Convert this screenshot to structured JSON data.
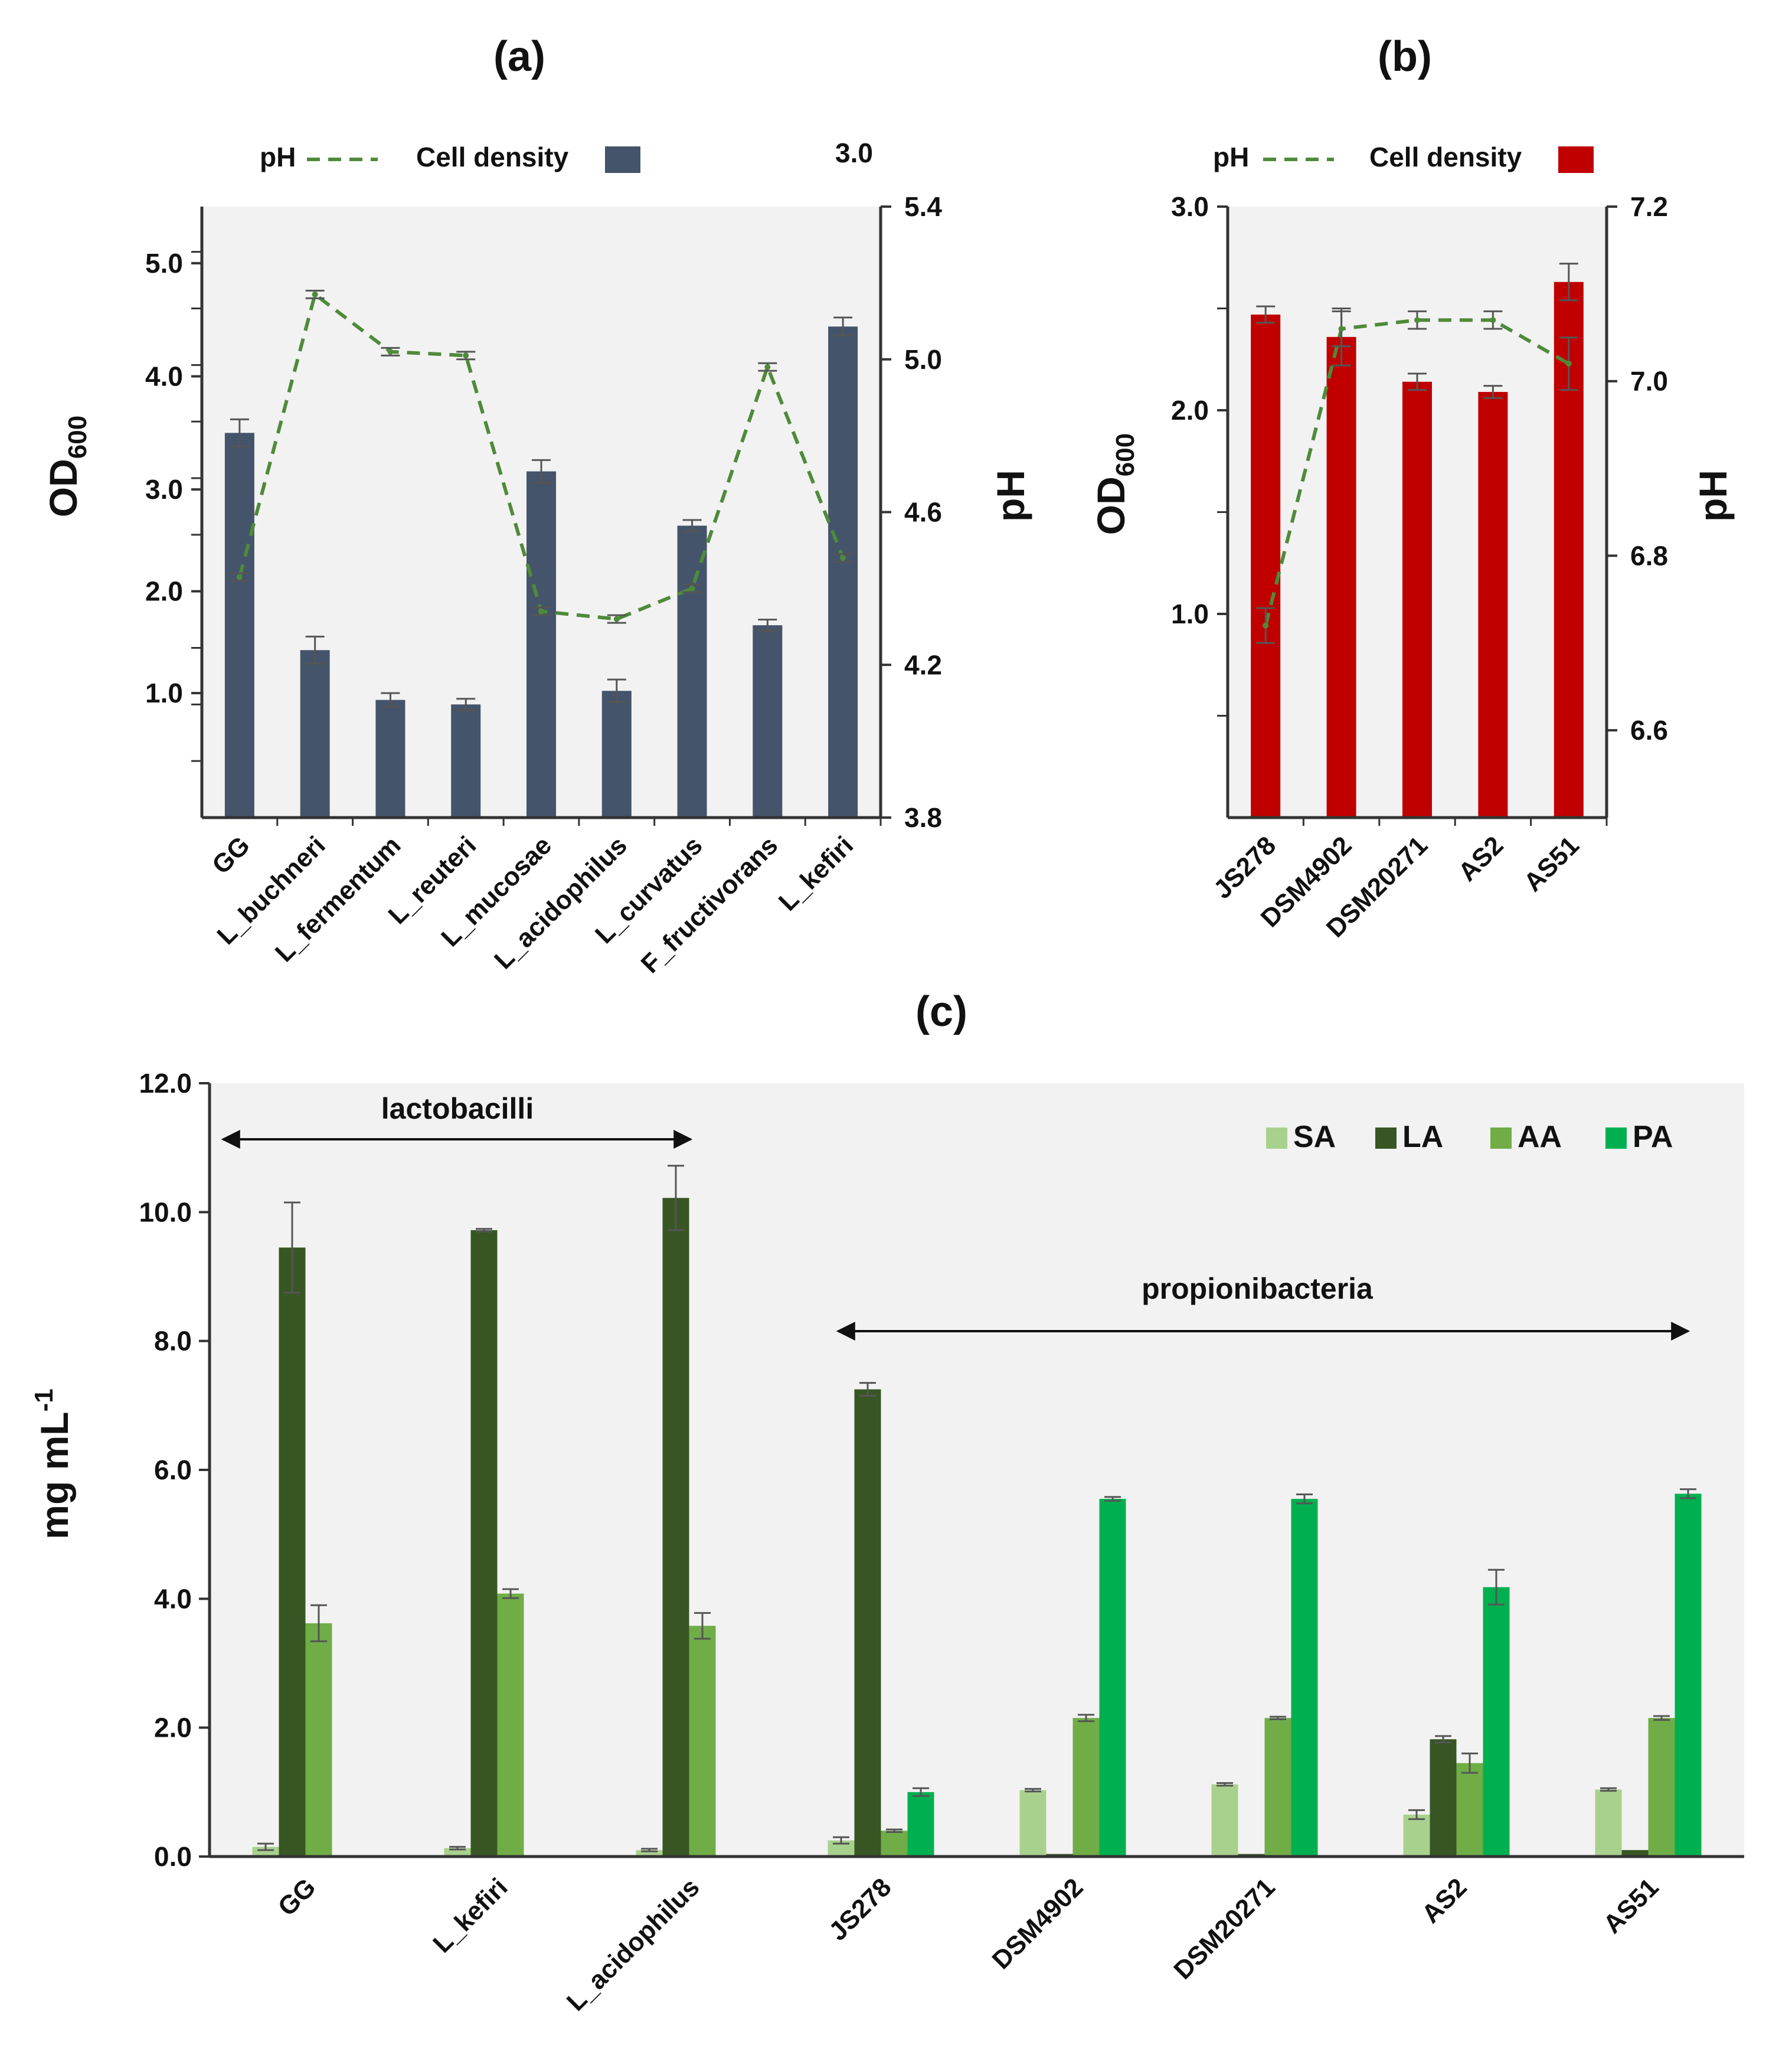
{
  "chart_data": [
    {
      "type": "bar",
      "panel": "(a)",
      "title": "(a)",
      "xlabel": "",
      "ylabel": "OD600",
      "ylabel_main": "OD",
      "ylabel_sub": "600",
      "y2label": "pH",
      "bar_color": "#44546a",
      "line_color": "#4f8a3a",
      "categories": [
        "GG",
        "L_buchneri",
        "L_fermentum",
        "L_reuteri",
        "L_mucosae",
        "L_acidophilus",
        "L_curvatus",
        "F_fructivorans",
        "L_kefiri"
      ],
      "series": [
        {
          "name": "Cell density",
          "kind": "bar",
          "axis": "left",
          "values": [
            3.4,
            1.48,
            1.04,
            1.0,
            3.06,
            1.12,
            2.58,
            1.7,
            4.34
          ],
          "errors": [
            0.12,
            0.12,
            0.06,
            0.05,
            0.1,
            0.1,
            0.05,
            0.05,
            0.08
          ]
        },
        {
          "name": "pH",
          "kind": "line",
          "axis": "right",
          "values": [
            4.43,
            5.17,
            5.02,
            5.01,
            4.34,
            4.32,
            4.4,
            4.98,
            4.48
          ],
          "errors": [
            0.01,
            0.01,
            0.01,
            0.01,
            0.01,
            0.01,
            0.01,
            0.01,
            0.01
          ]
        }
      ],
      "ylim": [
        0,
        5.4
      ],
      "y2lim": [
        3.8,
        5.4
      ],
      "yticks": [
        "1.0",
        "2.0",
        "3.0",
        "4.0",
        "5.0"
      ],
      "yticks_values": [
        1.1,
        2.0,
        2.9,
        3.9,
        4.9
      ],
      "y2ticks": [
        "3.8",
        "4.2",
        "4.6",
        "5.0",
        "5.4"
      ],
      "legend": {
        "pH": "pH",
        "cell_density": "Cell density",
        "extra_label": "3.0"
      }
    },
    {
      "type": "bar",
      "panel": "(b)",
      "title": "(b)",
      "xlabel": "",
      "ylabel": "OD600",
      "ylabel_main": "OD",
      "ylabel_sub": "600",
      "y2label": "pH",
      "bar_color": "#c00000",
      "line_color": "#4f8a3a",
      "categories": [
        "JS278",
        "DSM4902",
        "DSM20271",
        "AS2",
        "AS51"
      ],
      "series": [
        {
          "name": "Cell density",
          "kind": "bar",
          "axis": "left",
          "values": [
            2.47,
            2.36,
            2.14,
            2.09,
            2.63
          ],
          "errors": [
            0.04,
            0.14,
            0.04,
            0.03,
            0.09
          ]
        },
        {
          "name": "pH",
          "kind": "line",
          "axis": "right",
          "values": [
            6.72,
            7.06,
            7.07,
            7.07,
            7.02
          ],
          "errors": [
            0.02,
            0.02,
            0.01,
            0.01,
            0.03
          ]
        }
      ],
      "ylim": [
        0,
        3.0
      ],
      "y2lim": [
        6.5,
        7.2
      ],
      "yticks": [
        "1.0",
        "2.0",
        "3.0"
      ],
      "y2ticks": [
        "6.6",
        "6.8",
        "7.0",
        "7.2"
      ],
      "legend": {
        "pH": "pH",
        "cell_density": "Cell density"
      }
    },
    {
      "type": "bar",
      "panel": "(c)",
      "title": "(c)",
      "xlabel": "",
      "ylabel": "mg mL-1",
      "ylabel_main": "mg mL",
      "ylabel_sup": "-1",
      "categories": [
        "GG",
        "L_kefiri",
        "L_acidophilus",
        "JS278",
        "DSM4902",
        "DSM20271",
        "AS2",
        "AS51"
      ],
      "series": [
        {
          "name": "SA",
          "color": "#a9d18e",
          "values": [
            0.15,
            0.13,
            0.1,
            0.25,
            1.03,
            1.12,
            0.65,
            1.04
          ],
          "errors": [
            0.05,
            0.02,
            0.02,
            0.05,
            0.02,
            0.02,
            0.07,
            0.02
          ]
        },
        {
          "name": "LA",
          "color": "#375623",
          "values": [
            9.45,
            9.72,
            10.22,
            7.25,
            0.04,
            0.04,
            1.82,
            0.1
          ],
          "errors": [
            0.7,
            0.02,
            0.5,
            0.1,
            0.0,
            0.0,
            0.05,
            0.0
          ]
        },
        {
          "name": "AA",
          "color": "#70ad47",
          "values": [
            3.62,
            4.08,
            3.58,
            0.4,
            2.15,
            2.15,
            1.45,
            2.15
          ],
          "errors": [
            0.28,
            0.07,
            0.2,
            0.02,
            0.05,
            0.02,
            0.15,
            0.03
          ]
        },
        {
          "name": "PA",
          "color": "#00b050",
          "values": [
            0,
            0,
            0,
            1.0,
            5.55,
            5.55,
            4.18,
            5.63
          ],
          "errors": [
            0,
            0,
            0,
            0.06,
            0.03,
            0.07,
            0.27,
            0.07
          ]
        }
      ],
      "ylim": [
        0,
        12.0
      ],
      "yticks": [
        "0.0",
        "2.0",
        "4.0",
        "6.0",
        "8.0",
        "10.0",
        "12.0"
      ],
      "annotations": [
        {
          "text": "lactobacilli",
          "from": "GG",
          "to": "L_acidophilus"
        },
        {
          "text": "propionibacteria",
          "from": "JS278",
          "to": "AS51"
        }
      ],
      "legend_position": "top-right"
    }
  ]
}
